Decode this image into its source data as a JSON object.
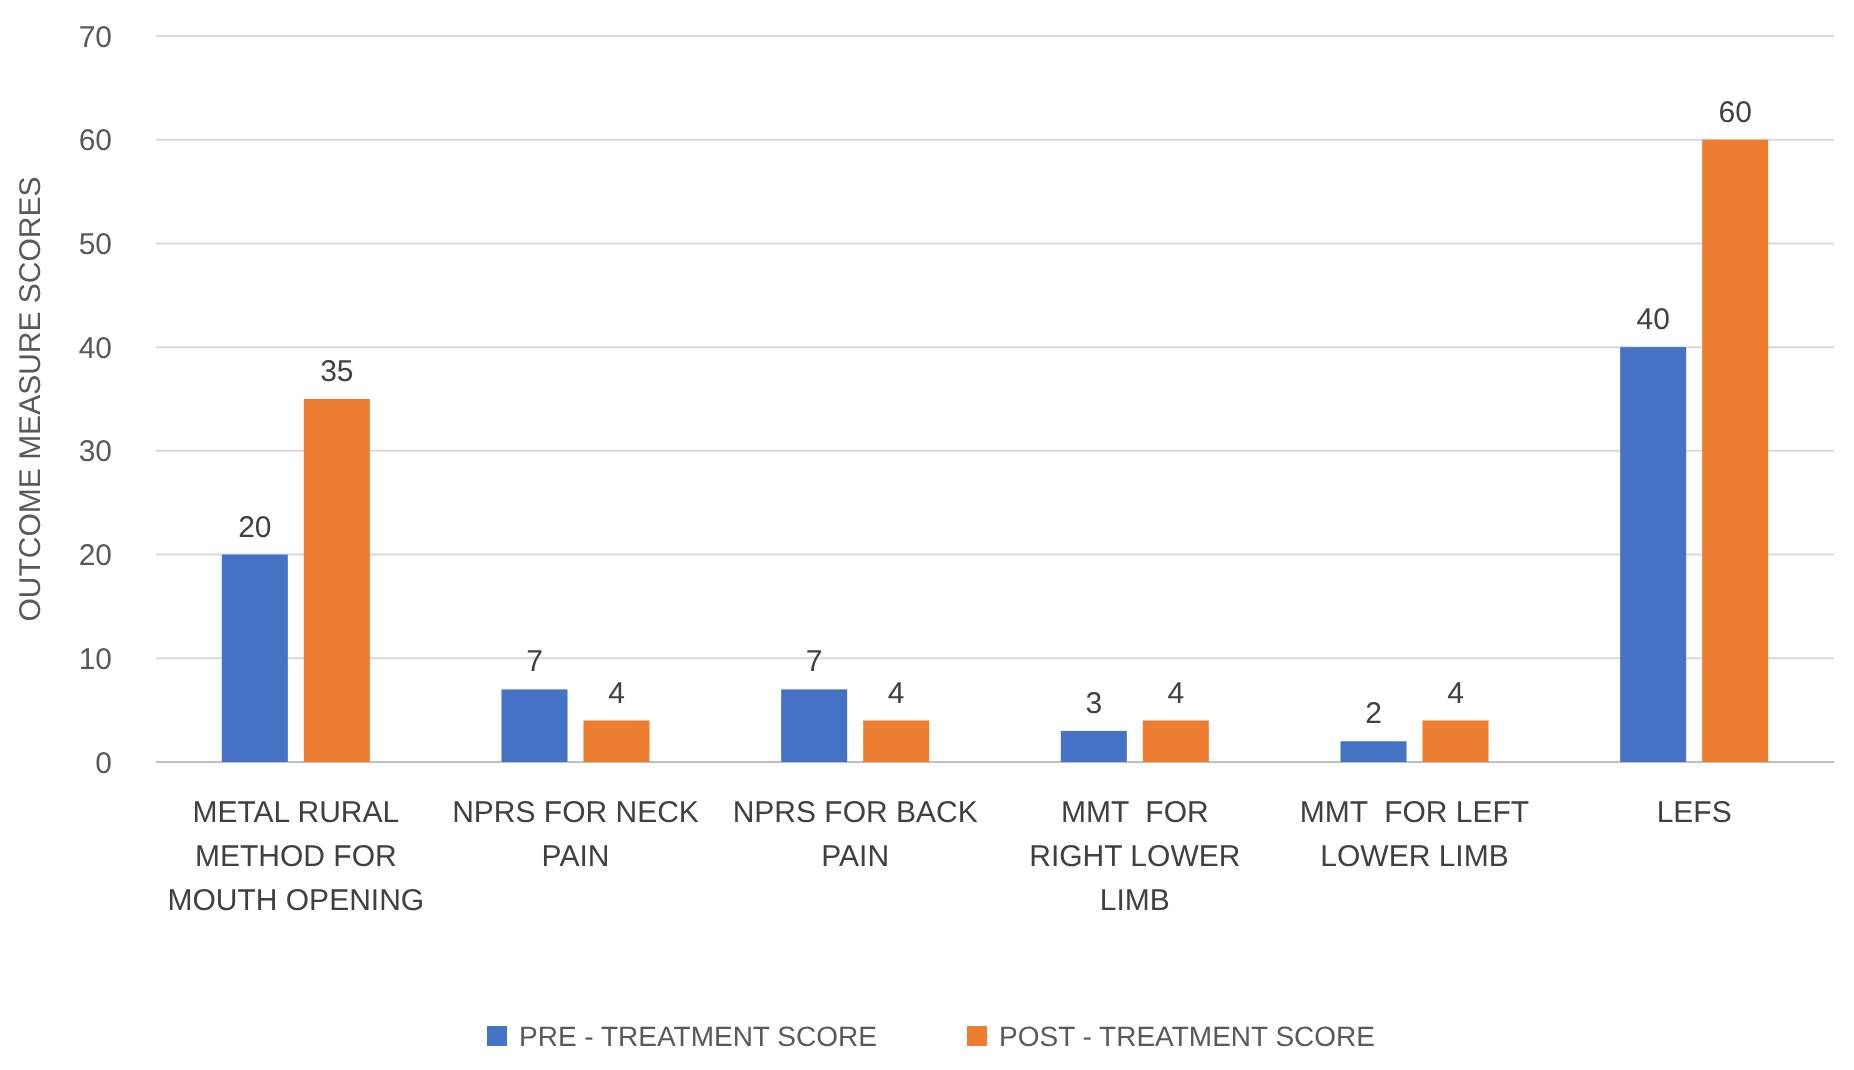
{
  "chart_data": {
    "type": "bar",
    "ylabel": "OUTCOME MEASURE SCORES",
    "categories": [
      "METAL RURAL METHOD FOR MOUTH OPENING",
      "NPRS FOR NECK PAIN",
      "NPRS FOR BACK PAIN",
      "MMT  FOR RIGHT LOWER LIMB",
      "MMT  FOR LEFT LOWER LIMB",
      "LEFS"
    ],
    "series": [
      {
        "name": "PRE - TREATMENT SCORE",
        "color": "#4472c4",
        "values": [
          20,
          7,
          7,
          3,
          2,
          40
        ]
      },
      {
        "name": "POST - TREATMENT SCORE",
        "color": "#ed7d31",
        "values": [
          35,
          4,
          4,
          4,
          4,
          60
        ]
      }
    ],
    "ylim": [
      0,
      70
    ],
    "yticks": [
      0,
      10,
      20,
      30,
      40,
      50,
      60,
      70
    ],
    "grid": "y",
    "legend": "bottom",
    "data_labels": true
  }
}
